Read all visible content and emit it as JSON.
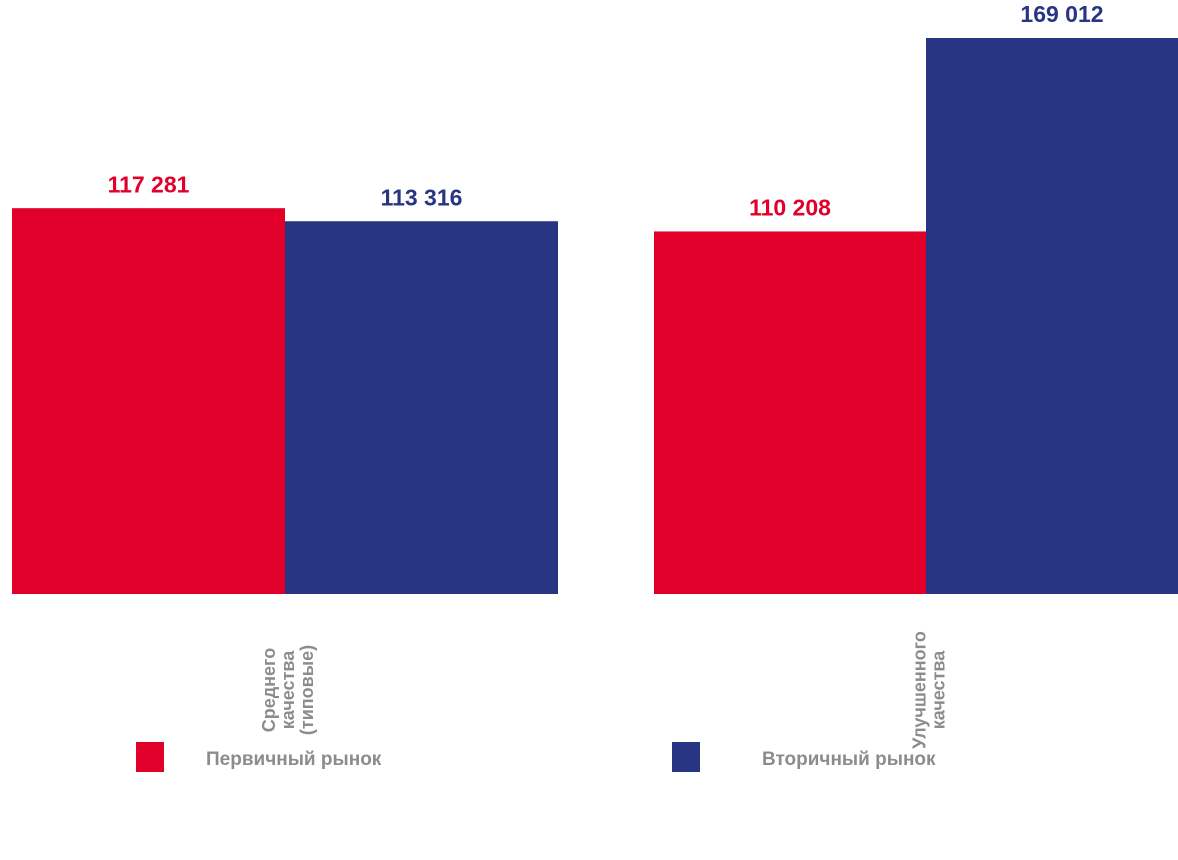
{
  "chart_data": {
    "type": "bar",
    "categories": [
      "Среднего качества (типовые)",
      "Улучшенного качества"
    ],
    "series": [
      {
        "name": "Первичный рынок",
        "color": "#e0002a",
        "values": [
          117281,
          110208
        ],
        "value_labels": [
          "117 281",
          "110 208"
        ]
      },
      {
        "name": "Вторичный рынок",
        "color": "#283583",
        "values": [
          113316,
          169012
        ],
        "value_labels": [
          "113 316",
          "169 012"
        ]
      }
    ]
  }
}
